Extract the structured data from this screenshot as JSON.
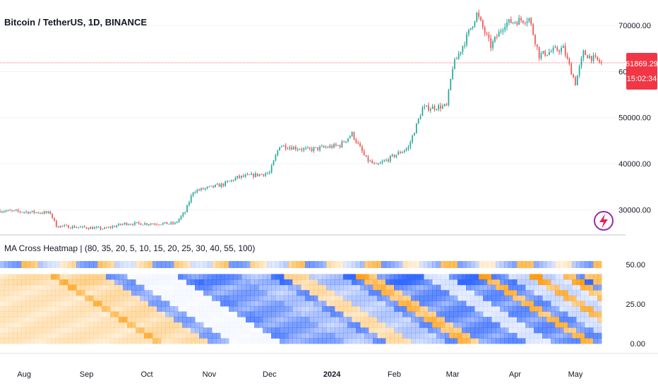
{
  "main_panel": {
    "title": "Bitcoin / TetherUS, 1D, BINANCE",
    "y_ticks": [
      "70000.00",
      "60000.00",
      "50000.00",
      "40000.00",
      "30000.00"
    ],
    "y_tick_values": [
      70000,
      60000,
      50000,
      40000,
      30000
    ],
    "last_price": "61869.29",
    "countdown": "15:02:34",
    "colors": {
      "up": "#26a69a",
      "down": "#ef5350",
      "price_tag": "#f23645",
      "grid": "#f0f3fa"
    },
    "icon": "lightning-bolt-icon"
  },
  "indicator_panel": {
    "title": "MA Cross Heatmap | (80, 35, 20, 5, 10, 15, 20, 25, 30, 40, 55, 100)",
    "y_ticks": [
      "50.00",
      "25.00",
      "0.00"
    ],
    "y_tick_values": [
      50,
      25,
      0
    ],
    "colors": {
      "bull": "#2962ff",
      "bear": "#ff9800"
    }
  },
  "time_axis": {
    "labels": [
      "Aug",
      "Sep",
      "Oct",
      "Nov",
      "Dec",
      "2024",
      "Feb",
      "Mar",
      "Apr",
      "May"
    ]
  },
  "chart_data": {
    "type": "candlestick",
    "title": "Bitcoin / TetherUS, 1D, BINANCE",
    "ylim": [
      25000,
      74000
    ],
    "close_path": [
      [
        "2023-07-20",
        29800
      ],
      [
        "2023-08-14",
        29300
      ],
      [
        "2023-08-17",
        26500
      ],
      [
        "2023-09-10",
        25900
      ],
      [
        "2023-09-20",
        27000
      ],
      [
        "2023-10-15",
        27000
      ],
      [
        "2023-10-20",
        29500
      ],
      [
        "2023-10-24",
        34000
      ],
      [
        "2023-11-08",
        35500
      ],
      [
        "2023-11-15",
        37000
      ],
      [
        "2023-12-01",
        38000
      ],
      [
        "2023-12-06",
        44000
      ],
      [
        "2023-12-20",
        43000
      ],
      [
        "2024-01-05",
        44000
      ],
      [
        "2024-01-11",
        46500
      ],
      [
        "2024-01-18",
        41000
      ],
      [
        "2024-01-23",
        39500
      ],
      [
        "2024-02-08",
        43500
      ],
      [
        "2024-02-15",
        52000
      ],
      [
        "2024-02-27",
        52500
      ],
      [
        "2024-03-01",
        61000
      ],
      [
        "2024-03-08",
        67500
      ],
      [
        "2024-03-13",
        72500
      ],
      [
        "2024-03-20",
        65500
      ],
      [
        "2024-03-27",
        70500
      ],
      [
        "2024-04-08",
        71500
      ],
      [
        "2024-04-13",
        63500
      ],
      [
        "2024-04-20",
        64500
      ],
      [
        "2024-04-25",
        65000
      ],
      [
        "2024-05-01",
        57500
      ],
      [
        "2024-05-05",
        64000
      ],
      [
        "2024-05-14",
        61869.29
      ]
    ],
    "heatmap": {
      "type": "heatmap",
      "title": "MA Cross Heatmap | (80, 35, 20, 5, 10, 15, 20, 25, 30, 40, 55, 100)",
      "ylim": [
        0,
        50
      ]
    }
  }
}
